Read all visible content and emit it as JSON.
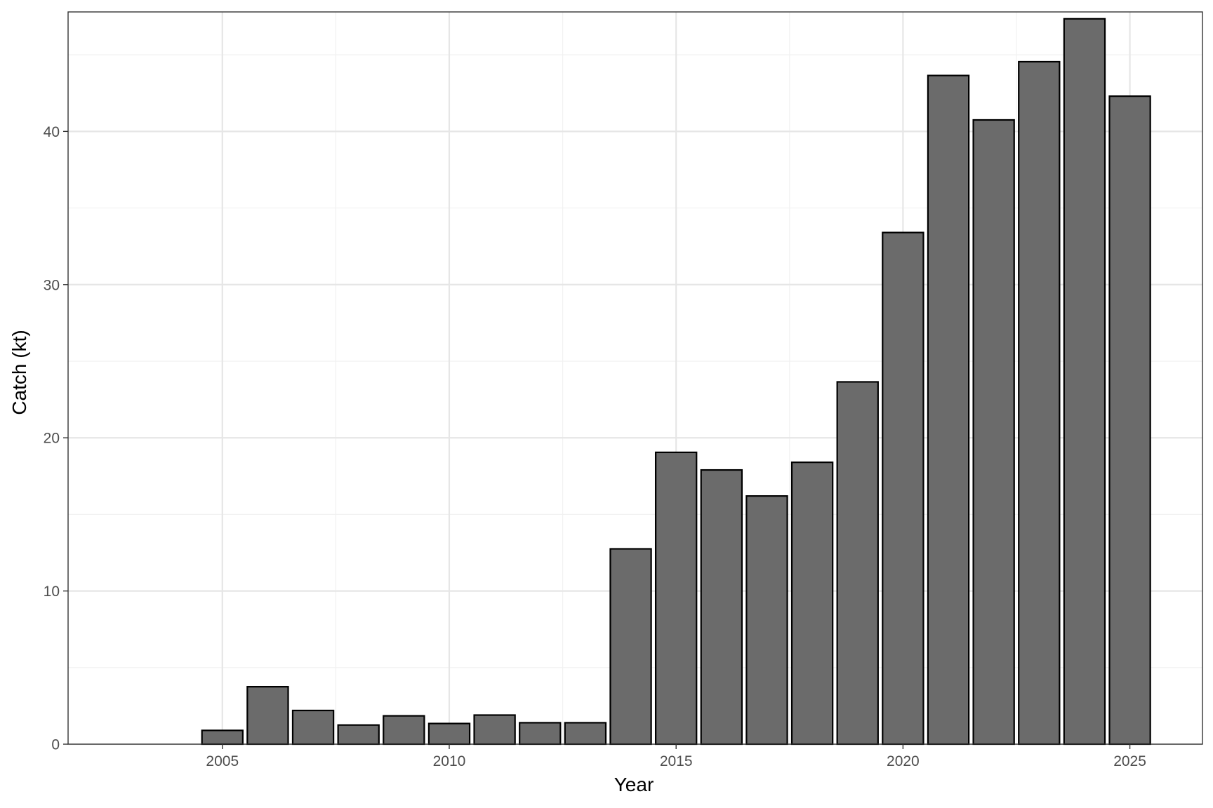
{
  "chart_data": {
    "type": "bar",
    "title": "",
    "xlabel": "Year",
    "ylabel": "Catch (kt)",
    "x": [
      2005,
      2006,
      2007,
      2008,
      2009,
      2010,
      2011,
      2012,
      2013,
      2014,
      2015,
      2016,
      2017,
      2018,
      2019,
      2020,
      2021,
      2022,
      2023,
      2024,
      2025
    ],
    "values": [
      0.9,
      3.75,
      2.2,
      1.25,
      1.85,
      1.35,
      1.9,
      1.4,
      1.4,
      12.75,
      19.05,
      17.9,
      16.2,
      18.4,
      23.65,
      33.4,
      43.65,
      40.75,
      44.55,
      47.35,
      42.3
    ],
    "xlim": [
      2001.6,
      2026.6
    ],
    "ylim": [
      0,
      47.8
    ],
    "x_ticks": [
      2005,
      2010,
      2015,
      2020,
      2025
    ],
    "y_ticks": [
      0,
      10,
      20,
      30,
      40
    ],
    "x_tick_labels": [
      "2005",
      "2010",
      "2015",
      "2020",
      "2025"
    ],
    "y_tick_labels": [
      "0",
      "10",
      "20",
      "30",
      "40"
    ],
    "x_minor_ticks": [
      2007.5,
      2012.5,
      2017.5,
      2022.5
    ],
    "y_minor_ticks": [
      5,
      15,
      25,
      35,
      45
    ],
    "bar_width": 0.9,
    "grid": true,
    "legend": "none",
    "colors": {
      "bar_fill": "#6b6b6b",
      "bar_stroke": "#000000",
      "grid_major": "#e6e6e6",
      "grid_minor": "#f1f1f1",
      "panel_border": "#333333",
      "tick_text": "#4d4d4d",
      "title_text": "#000000"
    }
  }
}
